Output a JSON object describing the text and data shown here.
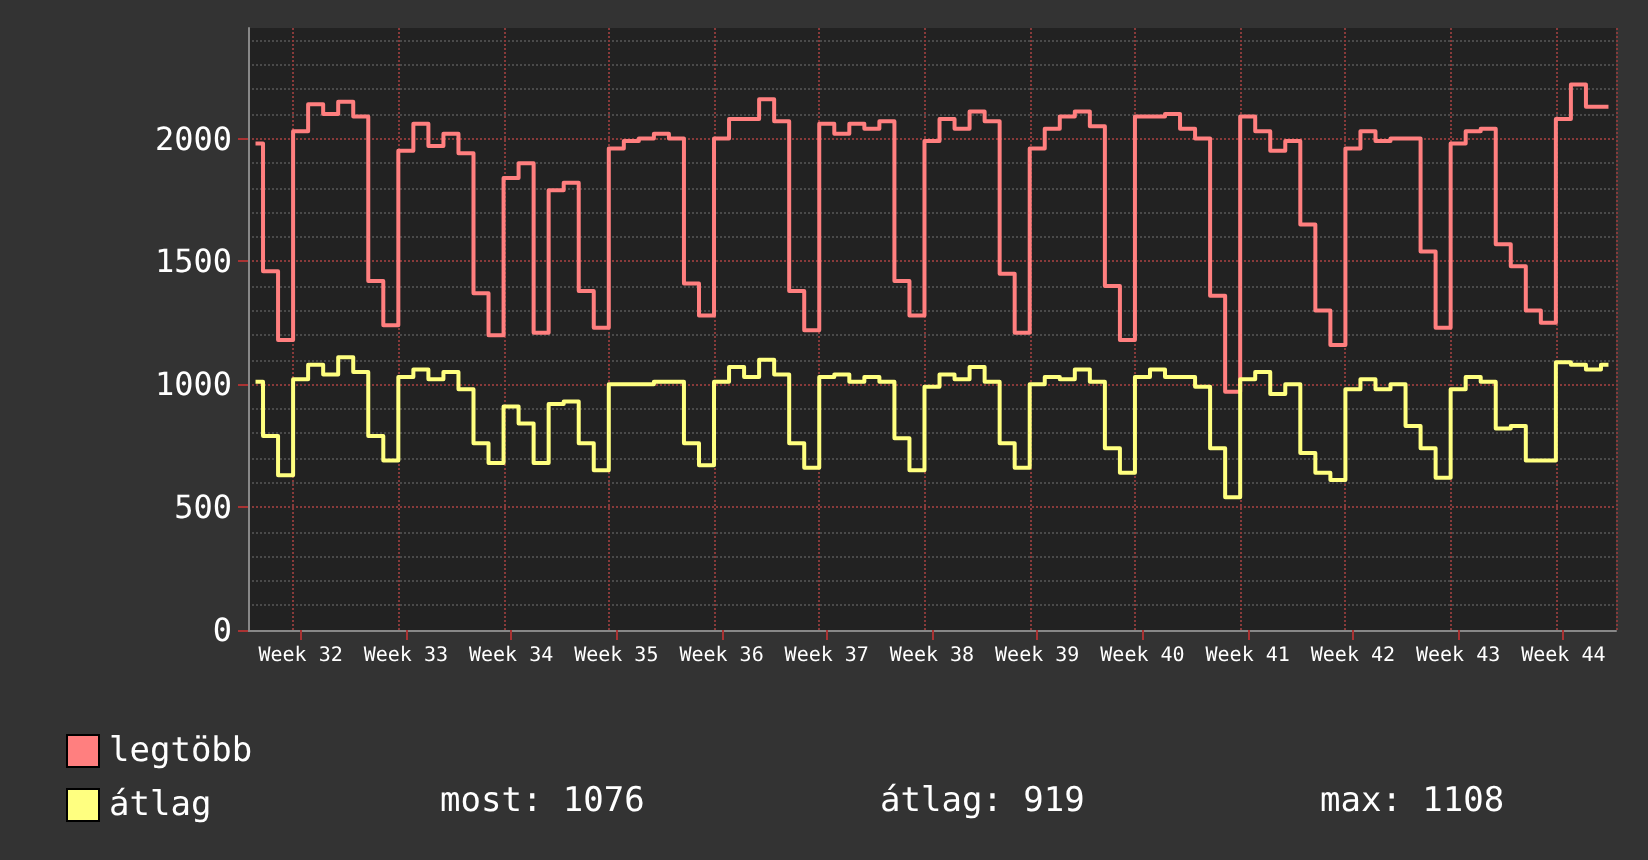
{
  "chart_data": {
    "type": "step",
    "categories": [
      null,
      null,
      null,
      "Week 32",
      null,
      null,
      null,
      null,
      null,
      null,
      "Week 33",
      null,
      null,
      null,
      null,
      null,
      null,
      "Week 34",
      null,
      null,
      null,
      null,
      null,
      null,
      "Week 35",
      null,
      null,
      null,
      null,
      null,
      null,
      "Week 36",
      null,
      null,
      null,
      null,
      null,
      null,
      "Week 37",
      null,
      null,
      null,
      null,
      null,
      null,
      "Week 38",
      null,
      null,
      null,
      null,
      null,
      null,
      "Week 39",
      null,
      null,
      null,
      null,
      null,
      null,
      "Week 40",
      null,
      null,
      null,
      null,
      null,
      null,
      "Week 41",
      null,
      null,
      null,
      null,
      null,
      null,
      "Week 42",
      null,
      null,
      null,
      null,
      null,
      null,
      "Week 43",
      null,
      null,
      null,
      null,
      null,
      null,
      "Week 44",
      null,
      null,
      null
    ],
    "series": [
      {
        "name": "legtöbb",
        "color": "#ff7f7f",
        "values": [
          1980,
          1460,
          1180,
          2030,
          2140,
          2100,
          2150,
          2090,
          1420,
          1240,
          1950,
          2060,
          1970,
          2020,
          1940,
          1370,
          1200,
          1840,
          1900,
          1210,
          1790,
          1820,
          1380,
          1230,
          1960,
          1990,
          2000,
          2020,
          2000,
          1410,
          1280,
          2000,
          2080,
          2080,
          2160,
          2070,
          1380,
          1220,
          2060,
          2020,
          2060,
          2040,
          2070,
          1420,
          1280,
          1990,
          2080,
          2040,
          2110,
          2070,
          1450,
          1210,
          1960,
          2040,
          2090,
          2110,
          2050,
          1400,
          1180,
          2090,
          2090,
          2100,
          2040,
          2000,
          1360,
          970,
          2090,
          2030,
          1950,
          1990,
          1650,
          1300,
          1160,
          1960,
          2030,
          1990,
          2000,
          2000,
          1540,
          1230,
          1980,
          2030,
          2040,
          1570,
          1480,
          1300,
          1250,
          2080,
          2220,
          2130,
          2130
        ]
      },
      {
        "name": "átlag",
        "color": "#ffff80",
        "values": [
          1010,
          790,
          630,
          1020,
          1080,
          1040,
          1110,
          1050,
          790,
          690,
          1030,
          1060,
          1020,
          1050,
          980,
          760,
          680,
          910,
          840,
          680,
          920,
          930,
          760,
          650,
          1000,
          1000,
          1000,
          1010,
          1010,
          760,
          670,
          1010,
          1070,
          1030,
          1100,
          1040,
          760,
          660,
          1030,
          1040,
          1010,
          1030,
          1010,
          780,
          650,
          990,
          1040,
          1020,
          1070,
          1010,
          760,
          660,
          1000,
          1030,
          1020,
          1060,
          1010,
          740,
          640,
          1030,
          1060,
          1030,
          1030,
          990,
          740,
          540,
          1020,
          1050,
          960,
          1000,
          720,
          640,
          610,
          980,
          1020,
          980,
          1000,
          830,
          740,
          620,
          980,
          1030,
          1010,
          820,
          830,
          690,
          690,
          1090,
          1080,
          1060,
          1080
        ]
      }
    ],
    "ylim": [
      0,
      2450
    ],
    "yticks": [
      0,
      500,
      1000,
      1500,
      2000
    ],
    "grid": true,
    "legend": "bottom left",
    "annotations": [
      "most: 1076",
      "átlag: 919",
      "max: 1108"
    ]
  }
}
